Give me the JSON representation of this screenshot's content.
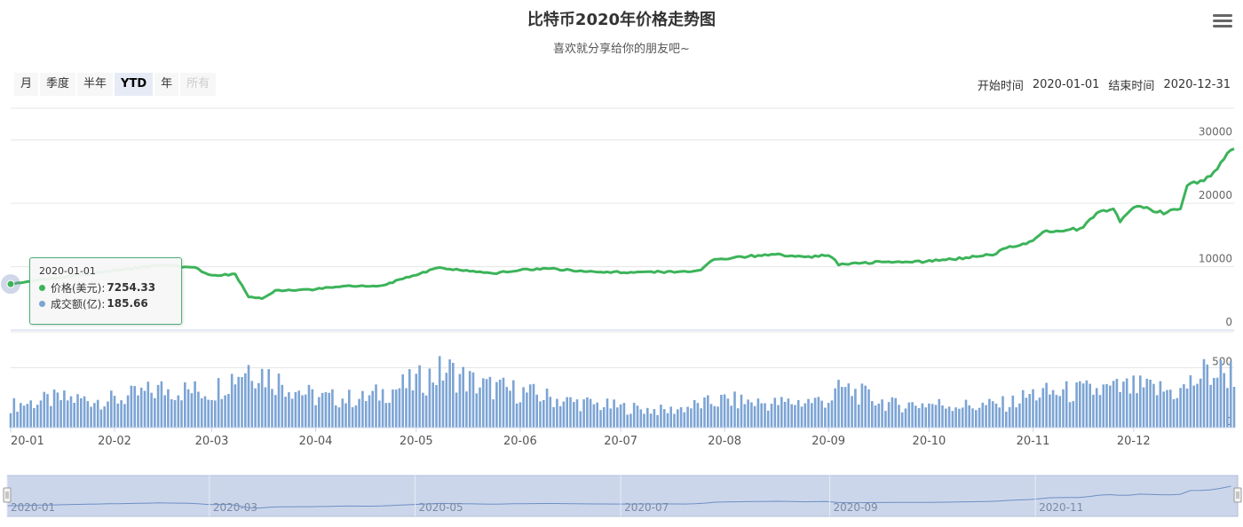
{
  "header": {
    "title": "比特币2020年价格走势图",
    "subtitle": "喜欢就分享给你的朋友吧~"
  },
  "range_selector": {
    "buttons": [
      "月",
      "季度",
      "半年",
      "YTD",
      "年",
      "所有"
    ],
    "selected": "YTD",
    "disabled": [
      "所有"
    ]
  },
  "input_range": {
    "start_label": "开始时间",
    "start_value": "2020-01-01",
    "end_label": "结束时间",
    "end_value": "2020-12-31"
  },
  "tooltip": {
    "date": "2020-01-01",
    "price_label": "价格(美元):",
    "price_value": "7254.33",
    "volume_label": "成交额(亿):",
    "volume_value": "185.66"
  },
  "colors": {
    "price": "#3cb35a",
    "volume": "#7ca4d4",
    "navigator_fill": "#ccd6eb",
    "navigator_line": "#6d8fc4"
  },
  "chart_data": {
    "type": "line",
    "title": "比特币2020年价格走势图",
    "subtitle": "喜欢就分享给你的朋友吧~",
    "x_ticks": [
      "20-01",
      "20-02",
      "20-03",
      "20-04",
      "20-05",
      "20-06",
      "20-07",
      "20-08",
      "20-09",
      "20-10",
      "20-11",
      "20-12"
    ],
    "navigator_ticks": [
      "2020-01",
      "2020-03",
      "2020-05",
      "2020-07",
      "2020-09",
      "2020-11"
    ],
    "price_axis": {
      "ticks": [
        "0",
        "10000",
        "20000",
        "30000"
      ],
      "range": [
        0,
        35000
      ]
    },
    "volume_axis": {
      "ticks": [
        "0",
        "500"
      ],
      "range": [
        0,
        800
      ]
    },
    "series": [
      {
        "name": "价格(美元)",
        "points": [
          [
            "2020-01-01",
            7254
          ],
          [
            "2020-01-10",
            7900
          ],
          [
            "2020-01-20",
            8600
          ],
          [
            "2020-01-31",
            9350
          ],
          [
            "2020-02-10",
            9900
          ],
          [
            "2020-02-15",
            10300
          ],
          [
            "2020-02-25",
            9800
          ],
          [
            "2020-03-01",
            8600
          ],
          [
            "2020-03-08",
            8800
          ],
          [
            "2020-03-12",
            5200
          ],
          [
            "2020-03-16",
            5000
          ],
          [
            "2020-03-20",
            6200
          ],
          [
            "2020-03-31",
            6400
          ],
          [
            "2020-04-10",
            7000
          ],
          [
            "2020-04-20",
            6900
          ],
          [
            "2020-04-30",
            8600
          ],
          [
            "2020-05-08",
            9800
          ],
          [
            "2020-05-15",
            9400
          ],
          [
            "2020-05-25",
            9000
          ],
          [
            "2020-06-01",
            9500
          ],
          [
            "2020-06-10",
            9700
          ],
          [
            "2020-06-20",
            9300
          ],
          [
            "2020-07-01",
            9100
          ],
          [
            "2020-07-10",
            9200
          ],
          [
            "2020-07-20",
            9150
          ],
          [
            "2020-07-25",
            9600
          ],
          [
            "2020-07-28",
            11000
          ],
          [
            "2020-08-01",
            11300
          ],
          [
            "2020-08-10",
            11700
          ],
          [
            "2020-08-17",
            12000
          ],
          [
            "2020-08-25",
            11400
          ],
          [
            "2020-09-01",
            11900
          ],
          [
            "2020-09-04",
            10400
          ],
          [
            "2020-09-15",
            10700
          ],
          [
            "2020-09-30",
            10780
          ],
          [
            "2020-10-10",
            11300
          ],
          [
            "2020-10-20",
            11900
          ],
          [
            "2020-10-25",
            13100
          ],
          [
            "2020-10-31",
            13800
          ],
          [
            "2020-11-05",
            15600
          ],
          [
            "2020-11-15",
            16000
          ],
          [
            "2020-11-20",
            18300
          ],
          [
            "2020-11-25",
            19200
          ],
          [
            "2020-11-27",
            17100
          ],
          [
            "2020-12-01",
            19600
          ],
          [
            "2020-12-10",
            18500
          ],
          [
            "2020-12-15",
            19400
          ],
          [
            "2020-12-17",
            23100
          ],
          [
            "2020-12-22",
            23500
          ],
          [
            "2020-12-25",
            24700
          ],
          [
            "2020-12-28",
            27000
          ],
          [
            "2020-12-31",
            29000
          ]
        ]
      },
      {
        "name": "成交额(亿)",
        "points": [
          [
            "2020-01-01",
            186
          ],
          [
            "2020-01-15",
            240
          ],
          [
            "2020-02-01",
            230
          ],
          [
            "2020-02-15",
            320
          ],
          [
            "2020-03-01",
            300
          ],
          [
            "2020-03-12",
            520
          ],
          [
            "2020-03-20",
            400
          ],
          [
            "2020-04-01",
            250
          ],
          [
            "2020-04-15",
            240
          ],
          [
            "2020-05-01",
            380
          ],
          [
            "2020-05-10",
            480
          ],
          [
            "2020-05-20",
            350
          ],
          [
            "2020-06-01",
            300
          ],
          [
            "2020-06-15",
            220
          ],
          [
            "2020-07-01",
            170
          ],
          [
            "2020-07-15",
            140
          ],
          [
            "2020-08-01",
            230
          ],
          [
            "2020-08-15",
            200
          ],
          [
            "2020-09-01",
            230
          ],
          [
            "2020-09-05",
            330
          ],
          [
            "2020-09-20",
            190
          ],
          [
            "2020-10-01",
            200
          ],
          [
            "2020-10-15",
            180
          ],
          [
            "2020-10-25",
            200
          ],
          [
            "2020-11-01",
            280
          ],
          [
            "2020-11-15",
            300
          ],
          [
            "2020-12-01",
            330
          ],
          [
            "2020-12-15",
            300
          ],
          [
            "2020-12-22",
            450
          ],
          [
            "2020-12-31",
            460
          ]
        ]
      }
    ],
    "price_peak_approx": 29000,
    "grid": true,
    "legend": "none"
  }
}
